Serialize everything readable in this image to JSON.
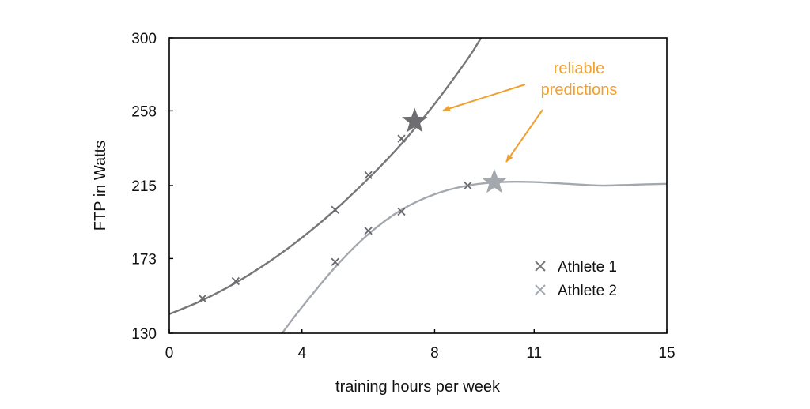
{
  "chart_data": {
    "type": "line",
    "xlabel": "training hours per week",
    "ylabel": "FTP in Watts",
    "xlim": [
      0,
      15
    ],
    "ylim": [
      130,
      300
    ],
    "x_ticks": [
      0,
      4,
      8,
      11,
      15
    ],
    "y_ticks": [
      130,
      173,
      215,
      258,
      300
    ],
    "x_tick_labels": [
      "0",
      "4",
      "8",
      "11",
      "15"
    ],
    "y_tick_labels": [
      "130",
      "173",
      "215",
      "258",
      "300"
    ],
    "grid": false,
    "legend": {
      "placement": "bottom-right"
    },
    "series": [
      {
        "name": "Athlete 1",
        "color": "#77777a",
        "marker": "x",
        "points": [
          [
            1,
            150
          ],
          [
            2,
            160
          ],
          [
            5,
            201
          ],
          [
            6,
            221
          ],
          [
            7,
            242
          ]
        ],
        "prediction": [
          7.4,
          252
        ],
        "fit_curve": [
          [
            0,
            141
          ],
          [
            1,
            149
          ],
          [
            2,
            159
          ],
          [
            3,
            171
          ],
          [
            4,
            185
          ],
          [
            5,
            201
          ],
          [
            6,
            219
          ],
          [
            7,
            239
          ],
          [
            8,
            262
          ],
          [
            9,
            288
          ],
          [
            9.4,
            300
          ]
        ]
      },
      {
        "name": "Athlete 2",
        "color": "#a3a8ae",
        "marker": "x",
        "points": [
          [
            5,
            171
          ],
          [
            6,
            189
          ],
          [
            7,
            200
          ],
          [
            9,
            215
          ]
        ],
        "prediction": [
          9.8,
          217
        ],
        "fit_curve": [
          [
            3.4,
            130
          ],
          [
            4,
            145
          ],
          [
            5,
            168
          ],
          [
            6,
            187
          ],
          [
            7,
            201
          ],
          [
            8,
            210
          ],
          [
            9,
            215
          ],
          [
            10,
            217
          ],
          [
            11,
            217
          ],
          [
            12,
            216
          ],
          [
            13,
            215
          ],
          [
            14,
            215.5
          ],
          [
            15,
            216
          ]
        ]
      }
    ],
    "annotation": {
      "text_lines": [
        "reliable",
        "predictions"
      ],
      "color": "#f0a030",
      "points_to": [
        "Athlete 1 prediction",
        "Athlete 2 prediction"
      ]
    }
  }
}
